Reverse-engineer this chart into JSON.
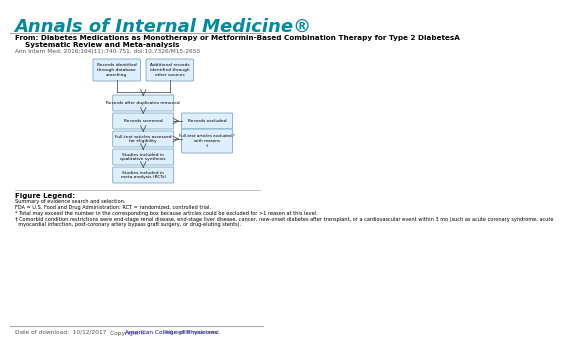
{
  "journal_title": "Annals of Internal Medicine",
  "journal_superscript": "®",
  "from_line1": "From: Diabetes Medications as Monotherapy or Metformin-Based Combination Therapy for Type 2 DiabetesA",
  "from_line2": "Systematic Review and Meta-analysis",
  "citation": "Ann Intern Med. 2016;164(11):740-751. doi:10.7326/M15-2650",
  "figure_legend_title": "Figure Legend:",
  "legend_line1": "Summary of evidence search and selection.",
  "legend_line2": "FDA = U.S. Food and Drug Administration; RCT = randomized, controlled trial.",
  "legend_line3": "* Total may exceed the number in the corresponding box because articles could be excluded for >1 reason at this level.",
  "legend_line4a": "† Comorbid condition restrictions were end-stage renal disease, end-stage liver disease, cancer, new-onset diabetes after transplant, or a cardiovascular event within 3 mo (such as acute coronary syndrome, acute",
  "legend_line4b": "  myocardial infarction, post-coronary artery bypass graft surgery, or drug-eluting stents).",
  "date_label": "Date of download:  10/12/2017",
  "copyright_text": "Copyright © ",
  "copyright_link": "American College of Physicians",
  "rights_text": "  All rights reserved.",
  "journal_color": "#008B9E",
  "link_color": "#0000BB",
  "background_color": "#FFFFFF",
  "separator_color": "#AAAAAA",
  "text_color": "#000000",
  "small_text_color": "#555555",
  "flowchart_box_color": "#DDEEFF",
  "flowchart_border_color": "#6699BB",
  "arrow_color": "#555555"
}
